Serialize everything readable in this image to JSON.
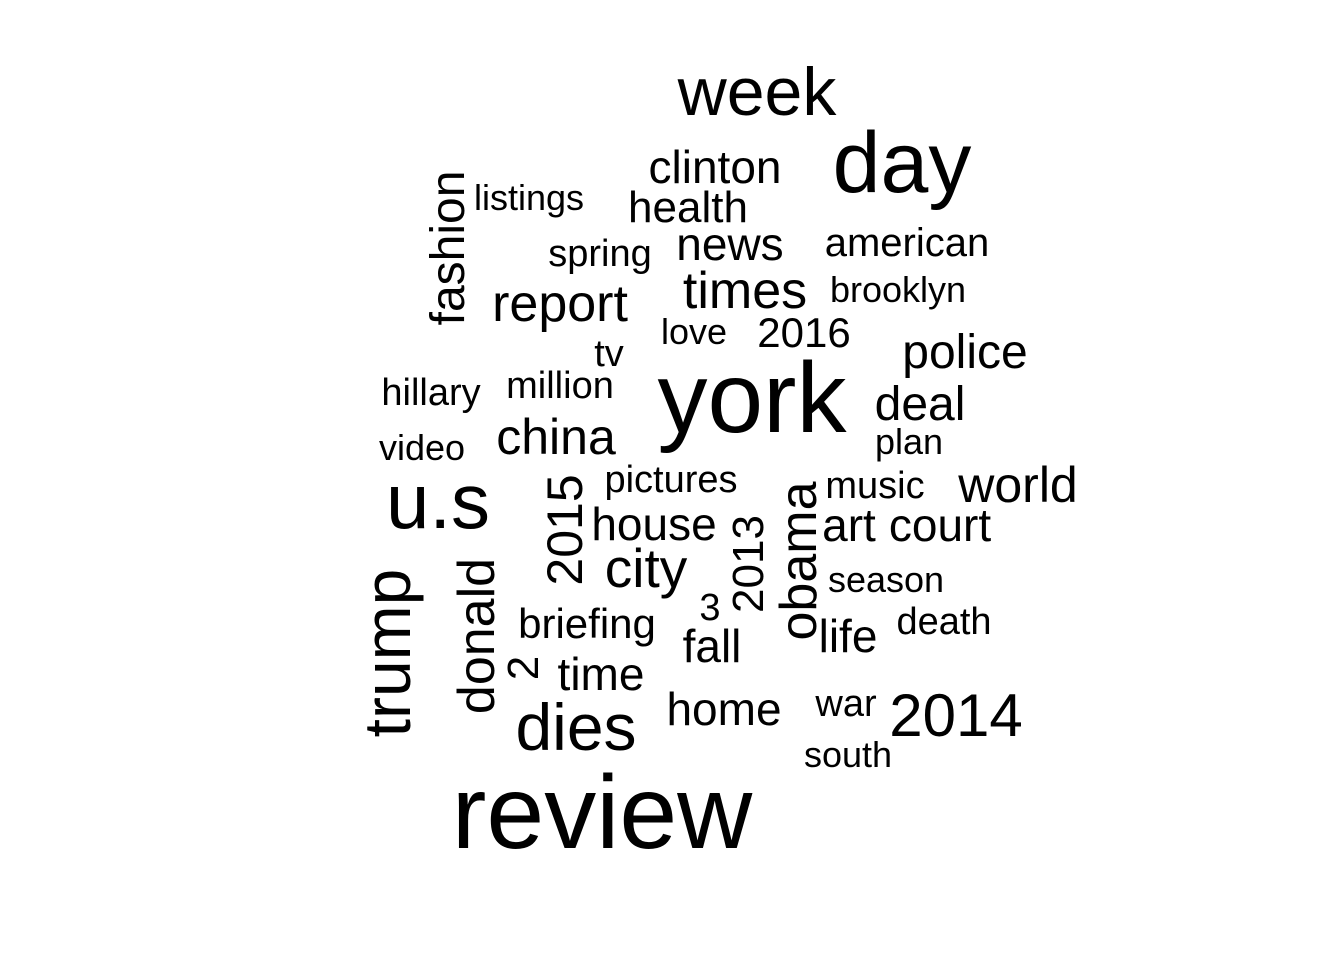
{
  "words": [
    {
      "id": "review",
      "text": "review"
    },
    {
      "id": "york",
      "text": "york"
    },
    {
      "id": "day",
      "text": "day"
    },
    {
      "id": "us",
      "text": "u.s"
    },
    {
      "id": "week",
      "text": "week"
    },
    {
      "id": "trump",
      "text": "trump"
    },
    {
      "id": "dies",
      "text": "dies"
    },
    {
      "id": "obama",
      "text": "obama"
    },
    {
      "id": "donald",
      "text": "donald"
    },
    {
      "id": "2014",
      "text": "2014"
    },
    {
      "id": "city",
      "text": "city"
    },
    {
      "id": "times",
      "text": "times"
    },
    {
      "id": "report",
      "text": "report"
    },
    {
      "id": "2015",
      "text": "2015"
    },
    {
      "id": "world",
      "text": "world"
    },
    {
      "id": "china",
      "text": "china"
    },
    {
      "id": "fashion",
      "text": "fashion"
    },
    {
      "id": "police",
      "text": "police"
    },
    {
      "id": "deal",
      "text": "deal"
    },
    {
      "id": "clinton",
      "text": "clinton"
    },
    {
      "id": "news",
      "text": "news"
    },
    {
      "id": "health",
      "text": "health"
    },
    {
      "id": "house",
      "text": "house"
    },
    {
      "id": "court",
      "text": "court"
    },
    {
      "id": "art",
      "text": "art"
    },
    {
      "id": "home",
      "text": "home"
    },
    {
      "id": "fall",
      "text": "fall"
    },
    {
      "id": "life",
      "text": "life"
    },
    {
      "id": "time",
      "text": "time"
    },
    {
      "id": "2013",
      "text": "2013"
    },
    {
      "id": "2016",
      "text": "2016"
    },
    {
      "id": "american",
      "text": "american"
    },
    {
      "id": "briefing",
      "text": "briefing"
    },
    {
      "id": "2",
      "text": "2"
    },
    {
      "id": "pictures",
      "text": "pictures"
    },
    {
      "id": "music",
      "text": "music"
    },
    {
      "id": "million",
      "text": "million"
    },
    {
      "id": "death",
      "text": "death"
    },
    {
      "id": "spring",
      "text": "spring"
    },
    {
      "id": "brooklyn",
      "text": "brooklyn"
    },
    {
      "id": "listings",
      "text": "listings"
    },
    {
      "id": "hillary",
      "text": "hillary"
    },
    {
      "id": "video",
      "text": "video"
    },
    {
      "id": "plan",
      "text": "plan"
    },
    {
      "id": "season",
      "text": "season"
    },
    {
      "id": "war",
      "text": "war"
    },
    {
      "id": "south",
      "text": "south"
    },
    {
      "id": "love",
      "text": "love"
    },
    {
      "id": "3",
      "text": "3"
    },
    {
      "id": "tv",
      "text": "tv"
    }
  ]
}
